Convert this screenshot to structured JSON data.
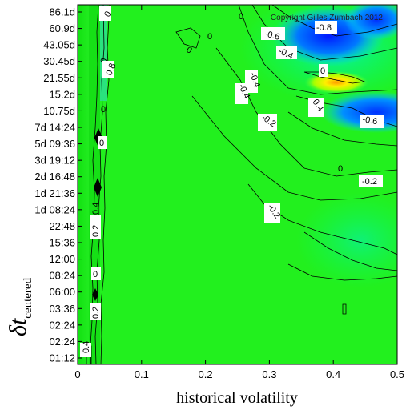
{
  "chart_data": {
    "type": "heatmap",
    "title": "",
    "copyright": "Copyright Gilles Zumbach 2012",
    "xlabel": "historical volatility",
    "ylabel_main": "δt",
    "ylabel_sub": "centered",
    "xlim": [
      0,
      0.5
    ],
    "x_ticks": [
      "0",
      "0.1",
      "0.2",
      "0.3",
      "0.4",
      "0.5"
    ],
    "y_ticks": [
      "01:12",
      "02:24",
      "02:24",
      "03:36",
      "06:00",
      "08:24",
      "12:00",
      "15:36",
      "22:48",
      "1d 08:24",
      "1d 21:36",
      "2d 16:48",
      "3d 19:12",
      "5d 09:36",
      "7d 14:24",
      "10.75d",
      "15.2d",
      "21.55d",
      "30.45d",
      "43.05d",
      "60.9d",
      "86.1d"
    ],
    "contour_labels": [
      "0.4",
      "0.2",
      "0",
      "0.2",
      "0.4",
      "0",
      "0",
      "0",
      "0",
      "0.8",
      "0",
      "0",
      "-0.6",
      "-0.8",
      "-0.4",
      "0",
      "-0.4",
      "0.4",
      "-0.4",
      "-0.2",
      "-0.6",
      "0",
      "-0.2",
      "-0.2",
      "0"
    ],
    "colorscale": [
      "#0000ff",
      "#00c8ff",
      "#00ff7f",
      "#7fff00",
      "#ffff00",
      "#ff9600"
    ],
    "legend": "none",
    "grid": false
  }
}
